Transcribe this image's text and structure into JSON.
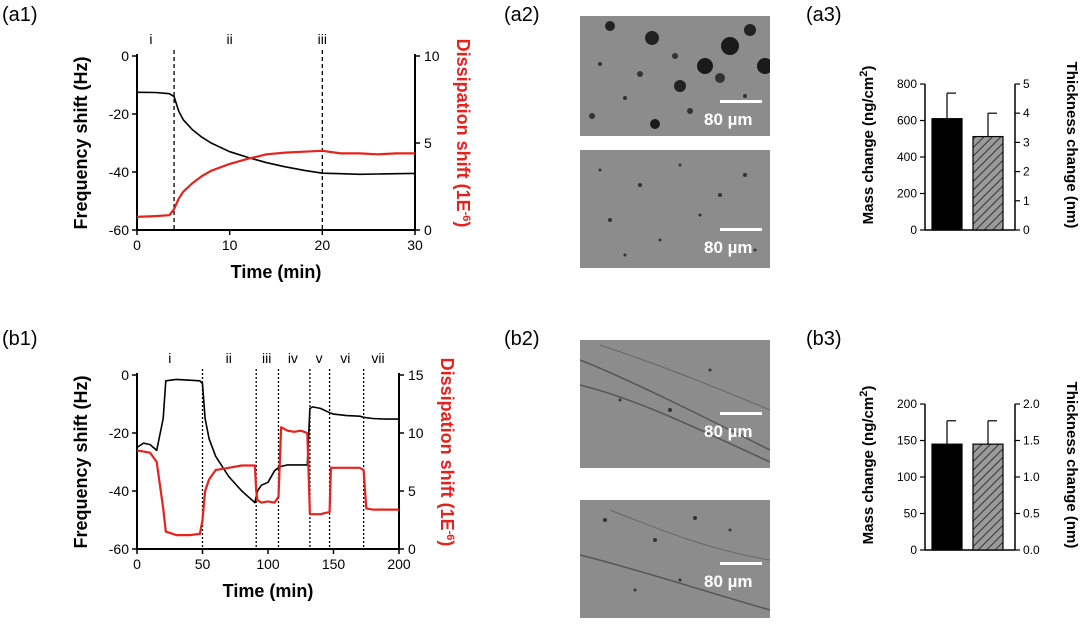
{
  "panels": {
    "a1": "(a1)",
    "a2": "(a2)",
    "a3": "(a3)",
    "b1": "(b1)",
    "b2": "(b2)",
    "b3": "(b3)"
  },
  "scale_bar_label": "80 µm",
  "colors": {
    "frequency": "#000000",
    "dissipation": "#e8211c",
    "hatch_fill": "#9a9a9a",
    "micrograph_bg": "#8c8c8c"
  },
  "chart_data": [
    {
      "id": "a1",
      "type": "line",
      "xlabel": "Time (min)",
      "ylabel_left": "Frequency shift (Hz)",
      "ylabel_right": "Dissipation shift (1E",
      "ylabel_right_sup": "-6",
      "ylabel_right_end": ")",
      "xlim": [
        0,
        30
      ],
      "ylim_left": [
        -60,
        0
      ],
      "ylim_right": [
        0,
        10
      ],
      "xticks": [
        0,
        10,
        20,
        30
      ],
      "yticks_left": [
        -60,
        -40,
        -20,
        0
      ],
      "yticks_right": [
        0,
        5,
        10
      ],
      "markers": [
        {
          "x": 4,
          "label": "i",
          "label_x": 1.5
        },
        {
          "x": 20,
          "label": "iii",
          "label_x": 20
        }
      ],
      "region_labels": [
        {
          "x": 10,
          "label": "ii"
        }
      ],
      "series": [
        {
          "axis": "left",
          "color": "#000000",
          "x": [
            0,
            2,
            3.5,
            4,
            4.5,
            5,
            6,
            7,
            8,
            10,
            12,
            14,
            16,
            18,
            20,
            22,
            24,
            26,
            28,
            30
          ],
          "y": [
            -12.5,
            -12.6,
            -13,
            -14,
            -19,
            -22,
            -25.5,
            -28,
            -30,
            -33,
            -35,
            -36.8,
            -38.2,
            -39.4,
            -40.4,
            -40.6,
            -40.8,
            -40.7,
            -40.6,
            -40.5
          ]
        },
        {
          "axis": "right",
          "color": "#e8211c",
          "x": [
            0,
            2,
            3.5,
            4,
            4.5,
            5,
            6,
            7,
            8,
            10,
            12,
            14,
            16,
            18,
            20,
            22,
            24,
            26,
            28,
            30
          ],
          "y": [
            0.75,
            0.8,
            0.85,
            1.2,
            1.8,
            2.2,
            2.7,
            3.1,
            3.4,
            3.8,
            4.1,
            4.35,
            4.45,
            4.5,
            4.55,
            4.4,
            4.4,
            4.35,
            4.4,
            4.4
          ]
        }
      ]
    },
    {
      "id": "a3",
      "type": "bar",
      "ylabel_left": "Mass change (ng/cm",
      "ylabel_left_sup": "2",
      "ylabel_left_end": ")",
      "ylabel_right": "Thickness change (nm)",
      "ylim_left": [
        0,
        800
      ],
      "ylim_right": [
        0,
        5
      ],
      "yticks_left": [
        0,
        200,
        400,
        600,
        800
      ],
      "yticks_right": [
        0,
        1,
        2,
        3,
        4,
        5
      ],
      "bars": [
        {
          "axis": "left",
          "value": 610,
          "error": 140,
          "style": "solid"
        },
        {
          "axis": "right",
          "value": 3.2,
          "error": 0.8,
          "style": "hatched"
        }
      ]
    },
    {
      "id": "b1",
      "type": "line",
      "xlabel": "Time (min)",
      "ylabel_left": "Frequency shift (Hz)",
      "ylabel_right": "Dissipation shift (1E",
      "ylabel_right_sup": "-6",
      "ylabel_right_end": ")",
      "xlim": [
        0,
        200
      ],
      "ylim_left": [
        -60,
        0
      ],
      "ylim_right": [
        0,
        15
      ],
      "xticks": [
        0,
        50,
        100,
        150,
        200
      ],
      "yticks_left": [
        -60,
        -40,
        -20,
        0
      ],
      "yticks_right": [
        0,
        5,
        10,
        15
      ],
      "markers": [
        {
          "x": 50
        },
        {
          "x": 91
        },
        {
          "x": 108
        },
        {
          "x": 132
        },
        {
          "x": 147
        },
        {
          "x": 173
        }
      ],
      "region_labels": [
        {
          "x": 25,
          "label": "i"
        },
        {
          "x": 70,
          "label": "ii"
        },
        {
          "x": 99,
          "label": "iii"
        },
        {
          "x": 119,
          "label": "iv"
        },
        {
          "x": 139,
          "label": "v"
        },
        {
          "x": 159,
          "label": "vi"
        },
        {
          "x": 184,
          "label": "vii"
        }
      ],
      "series": [
        {
          "axis": "left",
          "color": "#000000",
          "x": [
            0,
            5,
            10,
            15,
            20,
            22,
            30,
            40,
            48,
            50,
            52,
            55,
            60,
            70,
            80,
            85,
            90,
            92,
            95,
            100,
            105,
            108,
            110,
            115,
            120,
            125,
            130,
            132,
            134,
            140,
            147,
            150,
            160,
            170,
            173,
            180,
            190,
            200
          ],
          "y": [
            -25,
            -23.5,
            -24,
            -26,
            -15,
            -2,
            -1.5,
            -1.8,
            -2,
            -3,
            -15,
            -22,
            -28,
            -35,
            -40,
            -42,
            -44,
            -40,
            -38,
            -37,
            -33,
            -32,
            -31.5,
            -31,
            -31,
            -31,
            -31,
            -11.5,
            -11,
            -11.5,
            -13,
            -13.5,
            -14,
            -14.2,
            -14.6,
            -15,
            -15.2,
            -15.2
          ]
        },
        {
          "axis": "right",
          "color": "#e8211c",
          "x": [
            0,
            5,
            10,
            15,
            20,
            22,
            30,
            40,
            48,
            50,
            52,
            55,
            60,
            70,
            80,
            85,
            90,
            91,
            92,
            95,
            100,
            105,
            108,
            110,
            115,
            120,
            125,
            130,
            132,
            134,
            140,
            147,
            148,
            150,
            160,
            170,
            173,
            175,
            180,
            190,
            200
          ],
          "y": [
            8.5,
            8.4,
            8.3,
            7.5,
            3.5,
            1.5,
            1.2,
            1.2,
            1.3,
            2.5,
            5,
            6,
            6.8,
            7,
            7.2,
            7.2,
            7.2,
            5,
            4.2,
            4,
            4.1,
            4,
            4.5,
            10.5,
            10.2,
            10.1,
            10.2,
            10,
            3,
            3,
            3,
            3.2,
            7,
            7,
            7,
            7,
            6.8,
            3.5,
            3.4,
            3.4,
            3.4
          ]
        }
      ]
    },
    {
      "id": "b3",
      "type": "bar",
      "ylabel_left": "Mass change (ng/cm",
      "ylabel_left_sup": "2",
      "ylabel_left_end": ")",
      "ylabel_right": "Thickness change (nm)",
      "ylim_left": [
        0,
        200
      ],
      "ylim_right": [
        0,
        2
      ],
      "yticks_left": [
        0,
        50,
        100,
        150,
        200
      ],
      "yticks_right": [
        "0.0",
        "0.5",
        "1.0",
        "1.5",
        "2.0"
      ],
      "bars": [
        {
          "axis": "left",
          "value": 145,
          "error": 32,
          "style": "solid"
        },
        {
          "axis": "right",
          "value": 1.45,
          "error": 0.32,
          "style": "hatched"
        }
      ]
    }
  ]
}
